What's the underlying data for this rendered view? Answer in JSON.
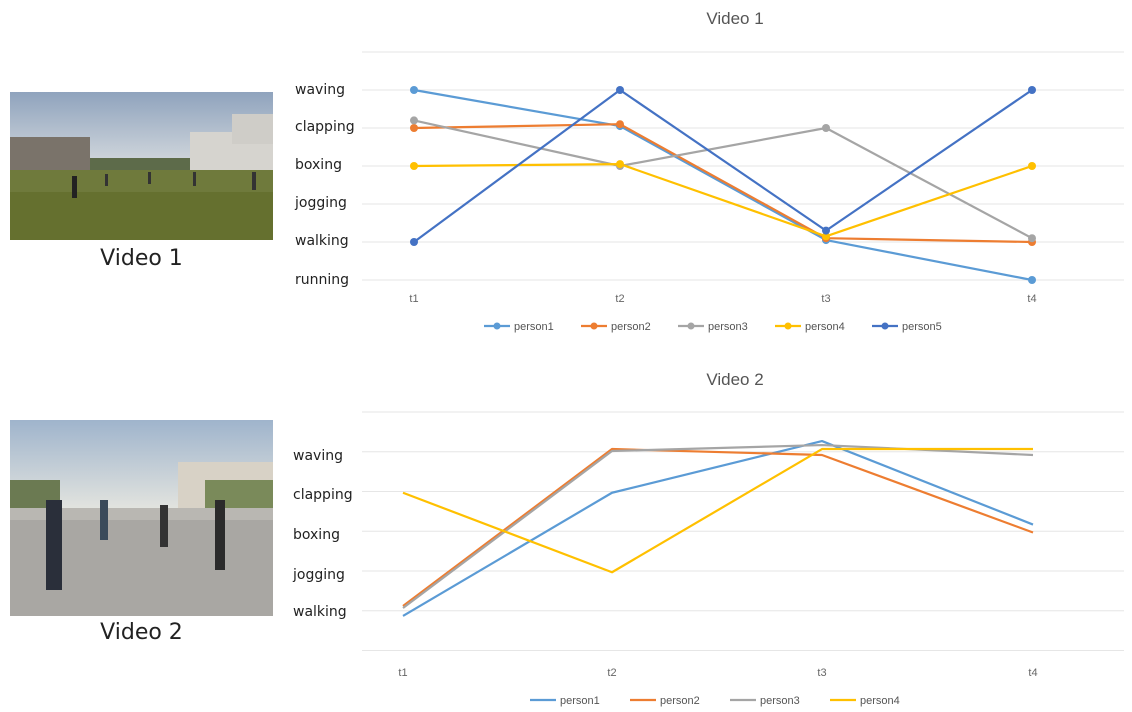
{
  "photos": [
    {
      "caption": "Video 1"
    },
    {
      "caption": "Video 2"
    }
  ],
  "chart_data": [
    {
      "type": "line",
      "title": "Video 1",
      "markers": true,
      "grid": true,
      "legend_position": "bottom",
      "categories": [
        "t1",
        "t2",
        "t3",
        "t4"
      ],
      "y_categories": [
        "running",
        "walking",
        "jogging",
        "boxing",
        "clapping",
        "waving"
      ],
      "ylim": [
        0,
        5
      ],
      "series": [
        {
          "name": "person1",
          "color": "#5B9BD5",
          "values": [
            5,
            4.05,
            1.05,
            0
          ]
        },
        {
          "name": "person2",
          "color": "#ED7D31",
          "values": [
            4,
            4.1,
            1.1,
            1
          ]
        },
        {
          "name": "person3",
          "color": "#A5A5A5",
          "values": [
            4.2,
            3,
            4,
            1.1
          ]
        },
        {
          "name": "person4",
          "color": "#FFC000",
          "values": [
            3,
            3.05,
            1.15,
            3
          ]
        },
        {
          "name": "person5",
          "color": "#4472C4",
          "values": [
            1,
            5,
            1.3,
            5
          ]
        }
      ]
    },
    {
      "type": "line",
      "title": "",
      "subtitle": "Video 2",
      "markers": false,
      "grid": true,
      "legend_position": "bottom",
      "categories": [
        "t1",
        "t2",
        "t3",
        "t4"
      ],
      "y_categories": [
        "walking",
        "jogging",
        "boxing",
        "clapping",
        "waving"
      ],
      "ylim": [
        -1,
        4.2
      ],
      "series": [
        {
          "name": "person1",
          "color": "#5B9BD5",
          "values": [
            -0.1,
            3,
            4.3,
            2.2
          ]
        },
        {
          "name": "person2",
          "color": "#ED7D31",
          "values": [
            0.15,
            4.1,
            3.95,
            2
          ]
        },
        {
          "name": "person3",
          "color": "#A5A5A5",
          "values": [
            0.1,
            4.05,
            4.2,
            3.95
          ]
        },
        {
          "name": "person4",
          "color": "#FFC000",
          "values": [
            3,
            1,
            4.1,
            4.1
          ]
        }
      ]
    }
  ]
}
